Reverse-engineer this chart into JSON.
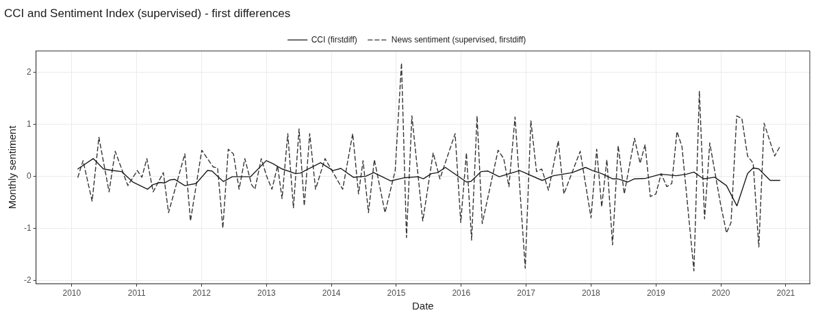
{
  "chart_data": {
    "type": "line",
    "title": "CCI and Sentiment Index (supervised) - first differences",
    "xlabel": "Date",
    "ylabel": "Monthly sentiment",
    "xlim": [
      2009.45,
      2021.37
    ],
    "xticks": [
      2010,
      2011,
      2012,
      2013,
      2014,
      2015,
      2016,
      2017,
      2018,
      2019,
      2020,
      2021
    ],
    "ylim": [
      -2.07,
      2.41
    ],
    "yticks": [
      -2,
      -1,
      0,
      1,
      2
    ],
    "grid": true,
    "legend": "top",
    "marker": "none",
    "series": [
      {
        "name": "CCI (firstdiff)",
        "color": "#1a1a1a",
        "line_style": "solid",
        "x": [
          2010.094,
          2010.331,
          2010.488,
          2010.627,
          2010.767,
          2010.941,
          2011.167,
          2011.254,
          2011.359,
          2011.429,
          2011.516,
          2011.585,
          2011.742,
          2011.916,
          2012.091,
          2012.16,
          2012.334,
          2012.474,
          2012.753,
          2012.997,
          2013.101,
          2013.24,
          2013.449,
          2013.519,
          2013.833,
          2014.024,
          2014.146,
          2014.338,
          2014.53,
          2014.652,
          2014.913,
          2015.122,
          2015.331,
          2015.418,
          2015.54,
          2015.638,
          2015.756,
          2016.08,
          2016.15,
          2016.307,
          2016.411,
          2016.585,
          2016.899,
          2017.247,
          2017.422,
          2017.711,
          2017.913,
          2018.024,
          2018.164,
          2018.331,
          2018.408,
          2018.564,
          2018.669,
          2018.843,
          2019.077,
          2019.314,
          2019.47,
          2019.585,
          2019.732,
          2019.906,
          2020.087,
          2020.247,
          2020.411,
          2020.498,
          2020.585,
          2020.76,
          2020.909
        ],
        "values": [
          0.14,
          0.34,
          0.14,
          0.11,
          0.09,
          -0.11,
          -0.25,
          -0.16,
          -0.12,
          -0.13,
          -0.07,
          -0.06,
          -0.18,
          -0.14,
          0.11,
          0.1,
          -0.1,
          -0.01,
          -0.01,
          0.3,
          0.24,
          0.14,
          0.05,
          0.06,
          0.26,
          0.11,
          0.15,
          -0.02,
          0.0,
          0.07,
          -0.09,
          -0.03,
          -0.01,
          -0.05,
          0.05,
          0.07,
          0.17,
          -0.11,
          -0.1,
          0.09,
          0.1,
          -0.01,
          0.11,
          -0.08,
          0.01,
          0.07,
          0.17,
          0.11,
          0.05,
          -0.05,
          -0.05,
          -0.11,
          -0.05,
          -0.04,
          0.04,
          0.01,
          0.04,
          0.08,
          -0.05,
          -0.02,
          -0.18,
          -0.57,
          0.05,
          0.16,
          0.14,
          -0.08,
          -0.08
        ]
      },
      {
        "name": "News sentiment (supervised, firstdiff)",
        "color": "#333333",
        "line_style": "dashed",
        "x": [
          2010.094,
          2010.174,
          2010.314,
          2010.418,
          2010.575,
          2010.669,
          2010.864,
          2011.01,
          2011.08,
          2011.157,
          2011.254,
          2011.411,
          2011.491,
          2011.742,
          2011.829,
          2012.003,
          2012.178,
          2012.247,
          2012.328,
          2012.411,
          2012.491,
          2012.578,
          2012.666,
          2012.77,
          2012.822,
          2012.92,
          2012.997,
          2013.084,
          2013.171,
          2013.24,
          2013.328,
          2013.415,
          2013.502,
          2013.582,
          2013.666,
          2013.756,
          2013.902,
          2014.174,
          2014.328,
          2014.418,
          2014.488,
          2014.571,
          2014.662,
          2014.826,
          2014.983,
          2015.08,
          2015.157,
          2015.24,
          2015.408,
          2015.568,
          2015.672,
          2015.906,
          2015.993,
          2016.08,
          2016.16,
          2016.244,
          2016.324,
          2016.568,
          2016.655,
          2016.735,
          2016.829,
          2016.986,
          2017.073,
          2017.16,
          2017.24,
          2017.345,
          2017.495,
          2017.582,
          2017.833,
          2018.0,
          2018.087,
          2018.164,
          2018.244,
          2018.331,
          2018.418,
          2018.512,
          2018.669,
          2018.756,
          2018.833,
          2018.913,
          2019.0,
          2019.08,
          2019.167,
          2019.244,
          2019.324,
          2019.401,
          2019.585,
          2019.669,
          2019.749,
          2019.829,
          2019.993,
          2020.087,
          2020.157,
          2020.244,
          2020.324,
          2020.411,
          2020.498,
          2020.585,
          2020.666,
          2020.829,
          2020.909
        ],
        "values": [
          -0.02,
          0.3,
          -0.48,
          0.75,
          -0.3,
          0.48,
          -0.18,
          0.11,
          -0.02,
          0.34,
          -0.3,
          0.07,
          -0.7,
          0.43,
          -0.86,
          0.5,
          0.18,
          0.16,
          -1.0,
          0.52,
          0.43,
          -0.25,
          0.34,
          -0.16,
          -0.25,
          0.34,
          0.02,
          -0.25,
          0.2,
          -0.43,
          0.82,
          -0.61,
          0.91,
          -0.57,
          0.82,
          -0.25,
          0.34,
          -0.25,
          0.82,
          -0.34,
          0.3,
          -0.7,
          0.32,
          -0.7,
          0.11,
          2.18,
          -1.18,
          1.16,
          -0.86,
          0.45,
          -0.05,
          0.82,
          -0.89,
          0.45,
          -1.23,
          1.16,
          -0.91,
          0.5,
          0.34,
          -0.2,
          1.14,
          -1.77,
          1.07,
          0.09,
          0.14,
          -0.27,
          0.68,
          -0.34,
          0.48,
          -0.8,
          0.52,
          -0.59,
          0.32,
          -1.32,
          0.59,
          -0.34,
          0.73,
          0.25,
          0.61,
          -0.39,
          -0.34,
          0.05,
          -0.2,
          -0.14,
          0.86,
          0.57,
          -1.82,
          1.64,
          -0.82,
          0.64,
          -0.52,
          -1.09,
          -0.89,
          1.16,
          1.11,
          0.39,
          0.25,
          -1.36,
          1.02,
          0.39,
          0.57
        ]
      }
    ]
  }
}
